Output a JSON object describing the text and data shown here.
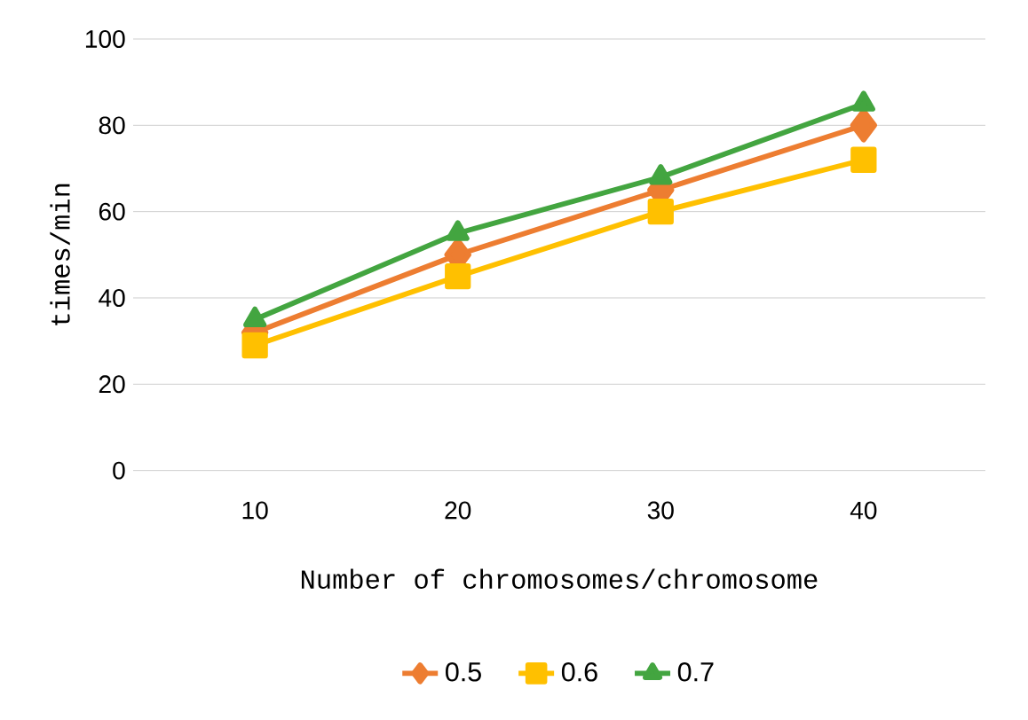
{
  "chart_data": {
    "type": "line",
    "xlabel": "Number of chromosomes/chromosome",
    "ylabel": "times/min",
    "categories": [
      "10",
      "20",
      "30",
      "40"
    ],
    "series": [
      {
        "name": "0.5",
        "color": "#ed7d31",
        "marker": "diamond",
        "values": [
          32,
          50,
          65,
          80
        ]
      },
      {
        "name": "0.6",
        "color": "#ffc000",
        "marker": "square",
        "values": [
          29,
          45,
          60,
          72
        ]
      },
      {
        "name": "0.7",
        "color": "#43a540",
        "marker": "triangle",
        "values": [
          35,
          55,
          68,
          85
        ]
      }
    ],
    "ylim": [
      0,
      100
    ],
    "yticks": [
      0,
      20,
      40,
      60,
      80,
      100
    ],
    "grid": "y",
    "legend": "bottom",
    "line_style": "solid"
  }
}
